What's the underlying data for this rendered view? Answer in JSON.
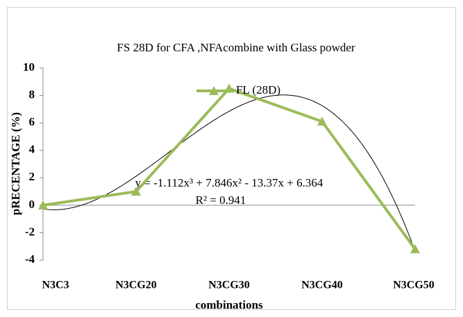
{
  "chart_data": {
    "type": "line",
    "title": "FS 28D  for  CFA ,NFAcombine with Glass powder",
    "x_label": "combinations",
    "y_label": "pRECENTAGE (%)",
    "categories": [
      "N3C3",
      "N3CG20",
      "N3CG30",
      "N3CG40",
      "N3CG50"
    ],
    "series": [
      {
        "name": "FL (28D)",
        "color": "#9bbb59",
        "values": [
          0,
          1,
          8.5,
          6.1,
          -3.2
        ]
      }
    ],
    "ylim": [
      -4,
      10
    ],
    "yticks": [
      -4,
      -2,
      0,
      2,
      4,
      6,
      8,
      10
    ],
    "grid": false,
    "legend": "top",
    "trendline": {
      "equation": "y = -1.112x³ + 7.846x² - 13.37x + 6.364",
      "r_squared": "R² = 0.941"
    }
  }
}
